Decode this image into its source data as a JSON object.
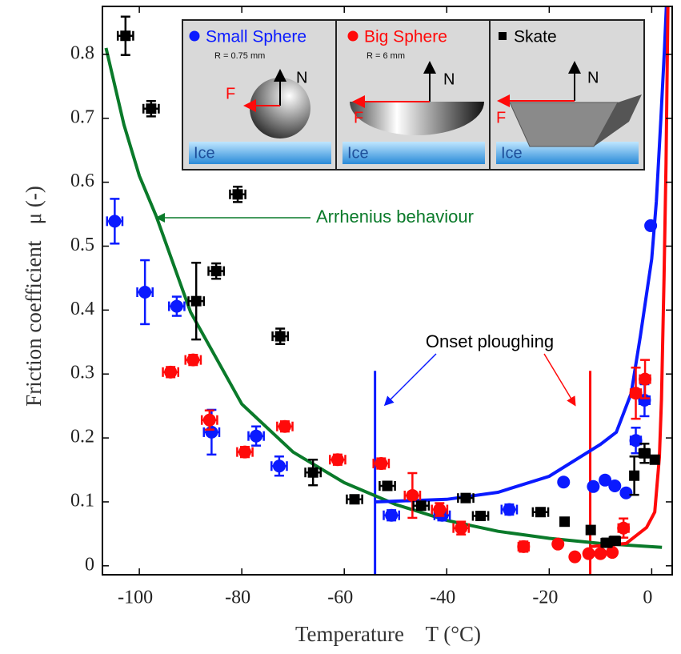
{
  "chart_data": {
    "type": "scatter",
    "x_label": "Temperature    T (°C)",
    "y_label": "Friction coefficient   μ (-)",
    "xlim": [
      -107.2,
      4
    ],
    "ylim": [
      -0.014,
      0.875
    ],
    "xticks": [
      -100,
      -80,
      -60,
      -40,
      -20,
      0
    ],
    "yticks": [
      0,
      0.1,
      0.2,
      0.3,
      0.4,
      0.5,
      0.6,
      0.7,
      0.8
    ],
    "series": [
      {
        "name": "Small Sphere",
        "color": "#0a1aff",
        "marker": "circle",
        "x": [
          -104.8,
          -98.9,
          -92.7,
          -85.9,
          -77.2,
          -72.7,
          -50.8,
          -40.9,
          -27.8,
          -17.2,
          -11.4,
          -9.1,
          -7.2,
          -5.0,
          -3.1,
          -1.4,
          -0.2
        ],
        "values": [
          0.539,
          0.428,
          0.406,
          0.209,
          0.203,
          0.156,
          0.079,
          0.079,
          0.088,
          0.131,
          0.124,
          0.134,
          0.125,
          0.114,
          0.196,
          0.259,
          0.532
        ],
        "xerr": [
          1.5,
          1.5,
          1.5,
          1.5,
          1.5,
          1.5,
          1.5,
          1.5,
          1.5,
          null,
          null,
          null,
          null,
          null,
          1.0,
          1.0,
          null
        ],
        "yerr": [
          0.035,
          0.05,
          0.015,
          0.035,
          0.015,
          0.015,
          0.008,
          0.008,
          0.008,
          null,
          null,
          null,
          null,
          null,
          0.02,
          0.025,
          null
        ]
      },
      {
        "name": "Big Sphere",
        "color": "#ff0a0a",
        "marker": "circle",
        "x": [
          -93.9,
          -89.5,
          -86.3,
          -79.4,
          -71.6,
          -61.3,
          -52.8,
          -46.7,
          -41.4,
          -37.2,
          -25.0,
          -18.3,
          -15.0,
          -12.3,
          -10.0,
          -7.7,
          -5.5,
          -3.1,
          -1.3
        ],
        "values": [
          0.303,
          0.322,
          0.228,
          0.178,
          0.218,
          0.166,
          0.16,
          0.11,
          0.088,
          0.059,
          0.03,
          0.034,
          0.014,
          0.019,
          0.019,
          0.021,
          0.059,
          0.27,
          0.292
        ],
        "xerr": [
          1.5,
          1.5,
          1.5,
          1.5,
          1.5,
          1.5,
          1.5,
          1.5,
          1.5,
          1.5,
          1.0,
          null,
          null,
          null,
          null,
          null,
          1.0,
          1.0,
          1.0
        ],
        "yerr": [
          0.008,
          0.008,
          0.015,
          0.008,
          0.008,
          0.008,
          0.008,
          0.035,
          0.01,
          0.01,
          0.008,
          null,
          null,
          null,
          null,
          null,
          0.015,
          0.04,
          0.03
        ]
      },
      {
        "name": "Skate",
        "color": "#000000",
        "marker": "square",
        "x": [
          -102.7,
          -97.7,
          -80.8,
          -88.9,
          -85.0,
          -72.5,
          -66.1,
          -58.0,
          -51.6,
          -45.0,
          -36.3,
          -33.4,
          -21.7,
          -17.0,
          -11.9,
          -8.8,
          -7.2,
          -3.4,
          -1.4,
          0.6
        ],
        "values": [
          0.829,
          0.715,
          0.581,
          0.414,
          0.461,
          0.359,
          0.146,
          0.104,
          0.125,
          0.094,
          0.106,
          0.078,
          0.084,
          0.069,
          0.056,
          0.036,
          0.039,
          0.141,
          0.176,
          0.166
        ],
        "xerr": [
          1.5,
          1.5,
          1.5,
          1.5,
          1.5,
          1.5,
          1.5,
          1.5,
          1.5,
          1.5,
          1.5,
          1.5,
          1.5,
          null,
          null,
          1.0,
          1.0,
          null,
          1.0,
          null
        ],
        "yerr": [
          0.03,
          0.012,
          0.012,
          0.06,
          0.012,
          0.012,
          0.02,
          0.006,
          0.006,
          0.006,
          0.006,
          0.006,
          0.006,
          null,
          null,
          null,
          null,
          0.03,
          0.015,
          null
        ]
      }
    ],
    "curves": [
      {
        "label": "Arrhenius behaviour",
        "color": "#0a7a2a",
        "x": [
          -106.5,
          -103,
          -100,
          -96.7,
          -90,
          -80,
          -70,
          -60,
          -50,
          -40,
          -30,
          -20,
          -10,
          2
        ],
        "values": [
          0.81,
          0.69,
          0.61,
          0.547,
          0.397,
          0.253,
          0.178,
          0.13,
          0.096,
          0.071,
          0.054,
          0.043,
          0.035,
          0.029
        ]
      },
      {
        "color": "#0a1aff",
        "x": [
          -54,
          -40,
          -30,
          -20,
          -10,
          -6.9,
          -4,
          -2.2,
          0,
          0.9,
          1.8,
          2.5,
          3
        ],
        "values": [
          0.1,
          0.104,
          0.115,
          0.14,
          0.19,
          0.209,
          0.27,
          0.36,
          0.48,
          0.57,
          0.7,
          0.81,
          0.9
        ]
      },
      {
        "color": "#ff0a0a",
        "x": [
          -12,
          -5,
          -1,
          0.6,
          1.5,
          1.9,
          2.4,
          2.8,
          3.2
        ],
        "values": [
          0.03,
          0.035,
          0.06,
          0.084,
          0.17,
          0.26,
          0.45,
          0.63,
          0.9
        ]
      }
    ],
    "onset_label": "Onset ploughing",
    "onset_lines": [
      {
        "x": -54,
        "ymax": 0.305,
        "color": "#0a1aff"
      },
      {
        "x": -12,
        "ymax": 0.305,
        "color": "#ff0a0a"
      }
    ],
    "inset": {
      "notes": [
        "R = 0.75 mm",
        "R = 6 mm"
      ],
      "normal_label": "N",
      "force_label": "F",
      "surface_label": "Ice"
    }
  }
}
